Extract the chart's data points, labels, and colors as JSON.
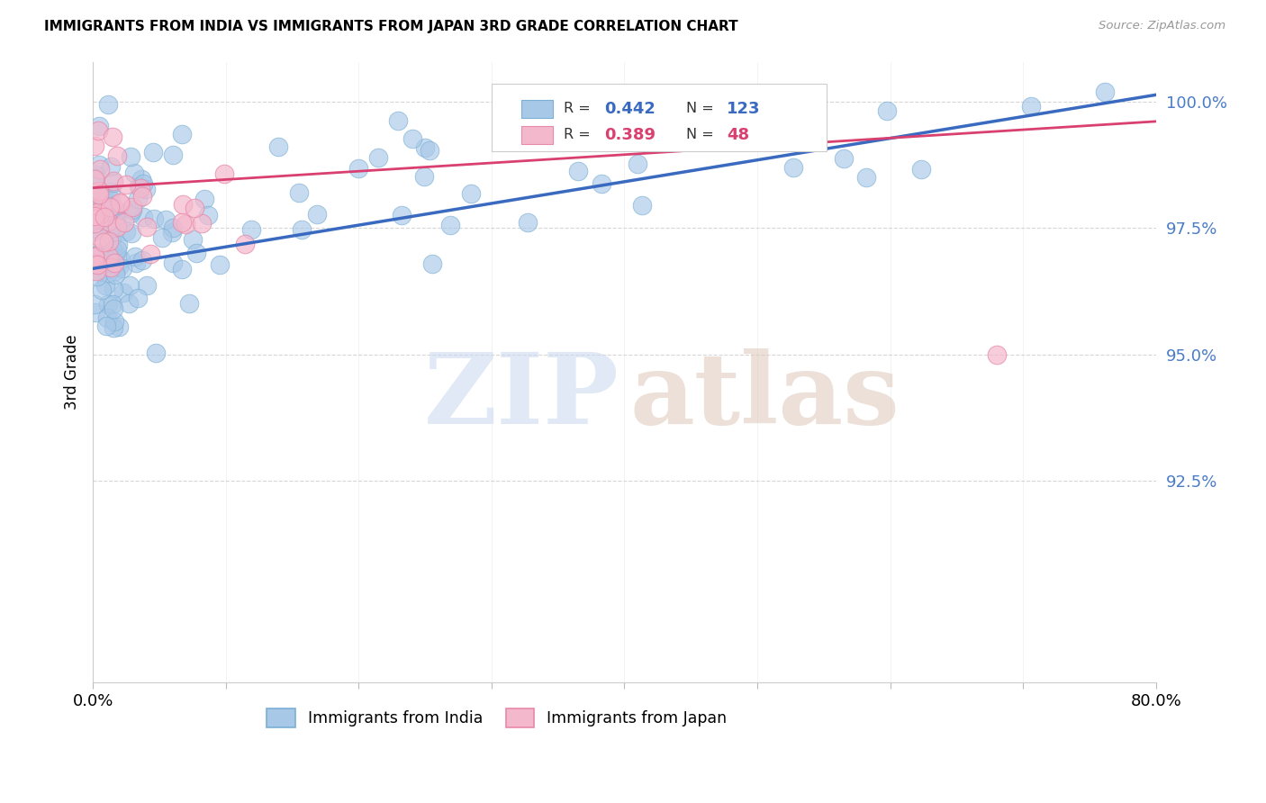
{
  "title": "IMMIGRANTS FROM INDIA VS IMMIGRANTS FROM JAPAN 3RD GRADE CORRELATION CHART",
  "source": "Source: ZipAtlas.com",
  "ylabel": "3rd Grade",
  "ytick_labels": [
    "100.0%",
    "97.5%",
    "95.0%",
    "92.5%"
  ],
  "ytick_values": [
    1.0,
    0.975,
    0.95,
    0.925
  ],
  "xmin": 0.0,
  "xmax": 0.8,
  "ymin": 0.885,
  "ymax": 1.008,
  "india_R": 0.442,
  "india_N": 123,
  "japan_R": 0.389,
  "japan_N": 48,
  "india_color": "#a8c8e8",
  "india_edge_color": "#7bafd4",
  "india_line_color": "#3a6abf",
  "japan_color": "#f4b8cc",
  "japan_edge_color": "#e888aa",
  "japan_line_color": "#d94070",
  "legend_india_label": "Immigrants from India",
  "legend_japan_label": "Immigrants from Japan",
  "watermark_zip_color": "#c8d8ee",
  "watermark_atlas_color": "#ddc8b8"
}
